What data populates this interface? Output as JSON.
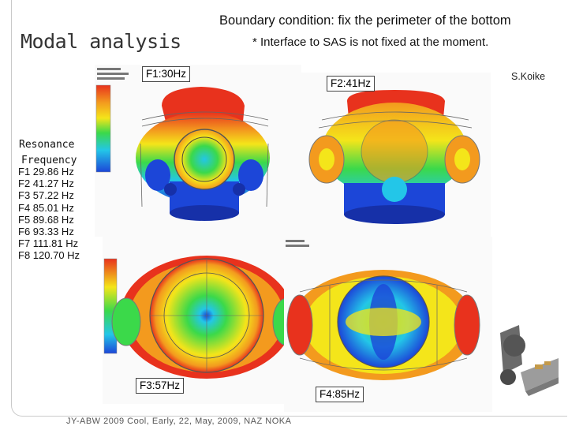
{
  "slide": {
    "title": "Modal analysis",
    "boundary_condition": "Boundary condition: fix the perimeter of the bottom",
    "note": "* Interface to SAS is not fixed at the moment.",
    "author": "S.Koike"
  },
  "resonance": {
    "heading_line1": "Resonance",
    "heading_line2": "Frequency",
    "modes": [
      "F1 29.86 Hz",
      "F2 41.27 Hz",
      "F3 57.22 Hz",
      "F4 85.01 Hz",
      "F5 89.68 Hz",
      "F6 93.33 Hz",
      "F7 111.81 Hz",
      "F8 120.70 Hz"
    ]
  },
  "panels": {
    "f1_label": "F1:30Hz",
    "f2_label": "F2:41Hz",
    "f3_label": "F3:57Hz",
    "f4_label": "F4:85Hz"
  },
  "colors": {
    "red": "#e8321d",
    "orange": "#f39a1e",
    "yellow": "#f4e51a",
    "green": "#3bd94a",
    "cyan": "#23c6e8",
    "blue": "#1c46d8",
    "dark_blue": "#1630a8"
  },
  "footer": "JY-ABW 2009 Cool, Early, 22, May, 2009, NAZ NOKA"
}
